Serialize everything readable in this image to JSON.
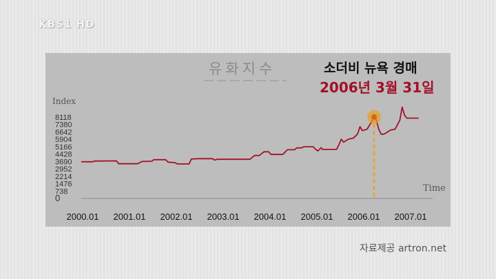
{
  "broadcaster": "KBS1 HD",
  "headline": "소더비 뉴욕 경매",
  "event_date": "2006년 3월 31일",
  "source": "자료제공 artron.net",
  "colors": {
    "line": "#a3102a",
    "marker": "#e8a020",
    "guide": "#f0a020",
    "panel": "#bdbdbd"
  },
  "chart_data": {
    "type": "line",
    "title": "유화지수",
    "xlabel": "Time",
    "ylabel": "Index",
    "ylim": [
      0,
      8856
    ],
    "xlim": [
      2000.0,
      2007.5
    ],
    "yticks": [
      0,
      738,
      1476,
      2214,
      2952,
      3690,
      4428,
      5166,
      5904,
      6642,
      7380,
      8118
    ],
    "xticks": [
      2000.0,
      2001.0,
      2002.0,
      2003.0,
      2004.0,
      2005.0,
      2006.0,
      2007.0
    ],
    "xtick_labels": [
      "2000.01",
      "2001.01",
      "2002.01",
      "2003.01",
      "2004.01",
      "2005.01",
      "2006.01",
      "2007.01"
    ],
    "highlight": {
      "x": 2006.25,
      "y": 8118
    },
    "series": [
      {
        "points": [
          [
            2000.0,
            3650
          ],
          [
            2000.25,
            3650
          ],
          [
            2000.28,
            3720
          ],
          [
            2000.75,
            3740
          ],
          [
            2000.8,
            3450
          ],
          [
            2001.0,
            3450
          ],
          [
            2001.2,
            3450
          ],
          [
            2001.3,
            3680
          ],
          [
            2001.5,
            3700
          ],
          [
            2001.55,
            3860
          ],
          [
            2001.8,
            3860
          ],
          [
            2001.85,
            3620
          ],
          [
            2002.0,
            3560
          ],
          [
            2002.05,
            3430
          ],
          [
            2002.3,
            3430
          ],
          [
            2002.35,
            3920
          ],
          [
            2002.5,
            3960
          ],
          [
            2002.8,
            3960
          ],
          [
            2002.85,
            3820
          ],
          [
            2002.9,
            3900
          ],
          [
            2003.6,
            3900
          ],
          [
            2003.7,
            4280
          ],
          [
            2003.8,
            4280
          ],
          [
            2003.9,
            4650
          ],
          [
            2004.0,
            4650
          ],
          [
            2004.05,
            4380
          ],
          [
            2004.3,
            4380
          ],
          [
            2004.4,
            4850
          ],
          [
            2004.55,
            4850
          ],
          [
            2004.6,
            5030
          ],
          [
            2004.7,
            5030
          ],
          [
            2004.75,
            5150
          ],
          [
            2004.95,
            5150
          ],
          [
            2005.0,
            4900
          ],
          [
            2005.05,
            4730
          ],
          [
            2005.12,
            5050
          ],
          [
            2005.15,
            4880
          ],
          [
            2005.45,
            4880
          ],
          [
            2005.5,
            5350
          ],
          [
            2005.55,
            5900
          ],
          [
            2005.6,
            5600
          ],
          [
            2005.7,
            5900
          ],
          [
            2005.8,
            6000
          ],
          [
            2005.85,
            6180
          ],
          [
            2005.9,
            6450
          ],
          [
            2005.95,
            7150
          ],
          [
            2006.0,
            6750
          ],
          [
            2006.1,
            6900
          ],
          [
            2006.18,
            7500
          ],
          [
            2006.25,
            8118
          ],
          [
            2006.3,
            7800
          ],
          [
            2006.35,
            6900
          ],
          [
            2006.4,
            6400
          ],
          [
            2006.45,
            6400
          ],
          [
            2006.5,
            6500
          ],
          [
            2006.6,
            6800
          ],
          [
            2006.7,
            6900
          ],
          [
            2006.8,
            7800
          ],
          [
            2006.85,
            9100
          ],
          [
            2006.9,
            8300
          ],
          [
            2006.95,
            8000
          ],
          [
            2007.0,
            8000
          ],
          [
            2007.2,
            8000
          ]
        ]
      }
    ]
  }
}
